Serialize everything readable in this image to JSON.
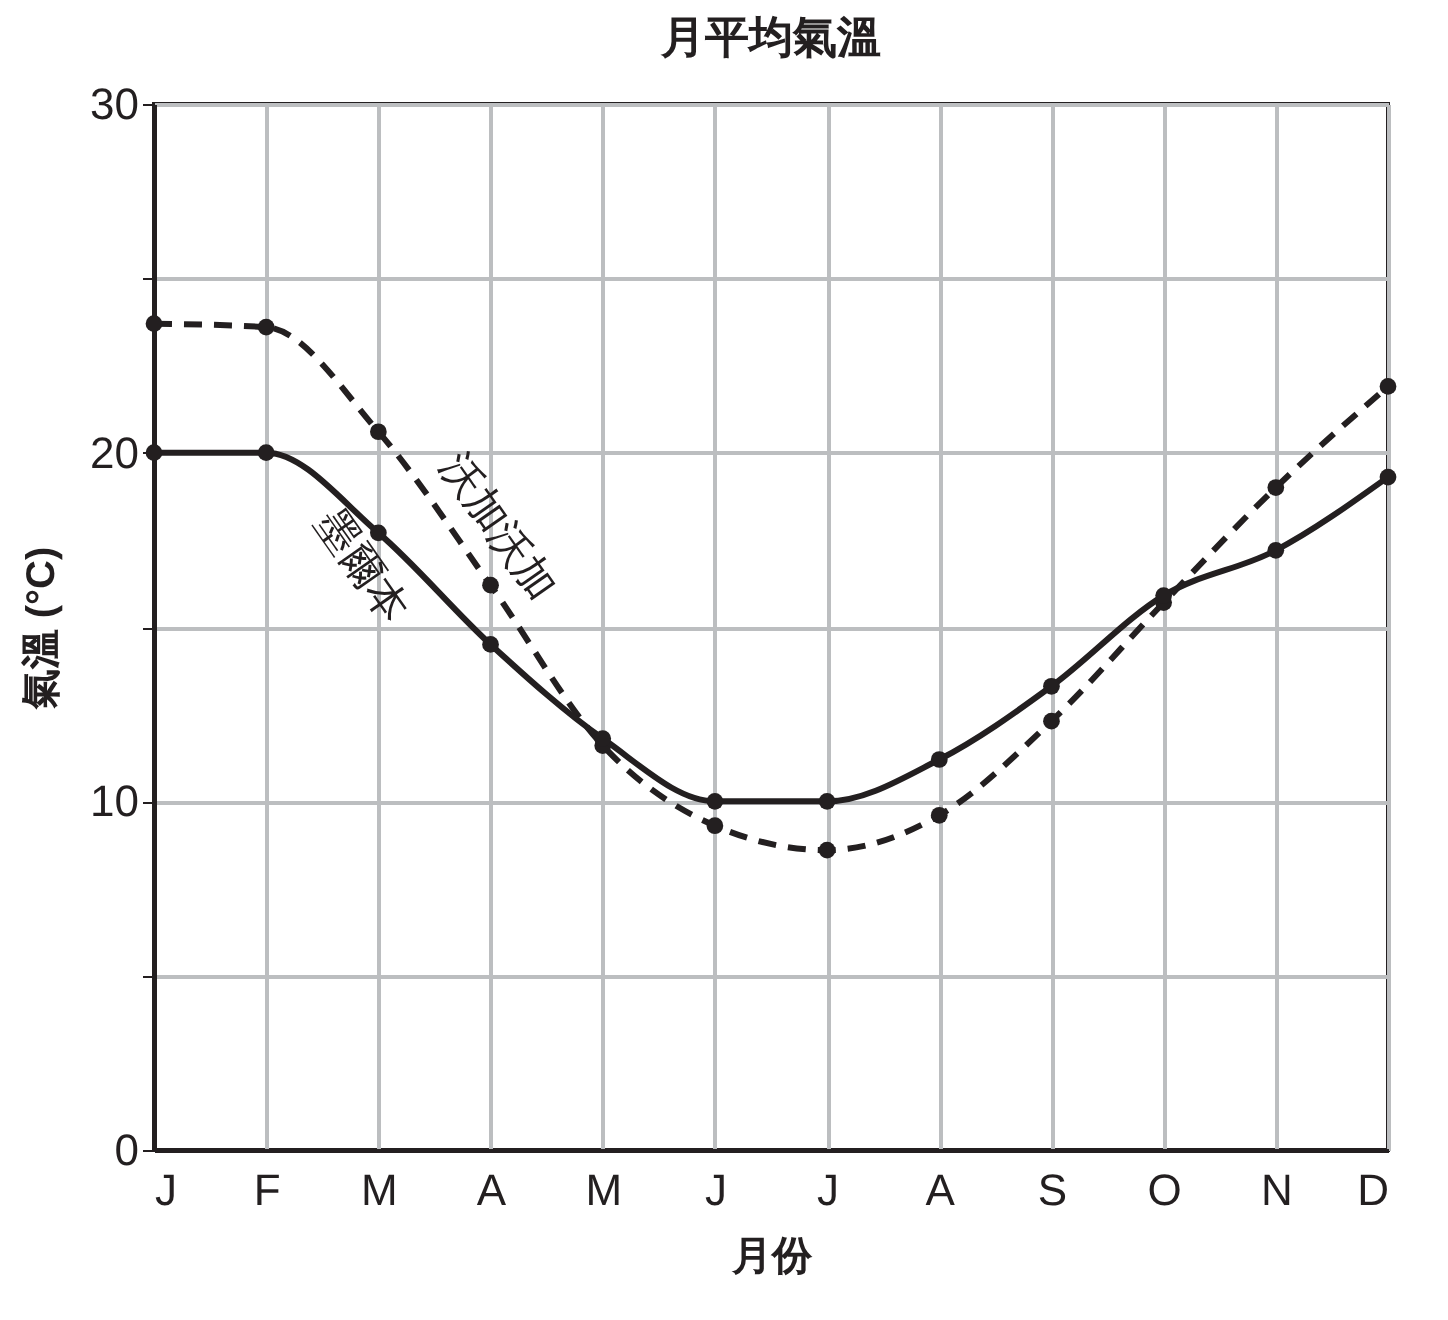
{
  "chart_data": {
    "type": "line",
    "title": "月平均氣溫",
    "xlabel": "月份",
    "ylabel": "氣溫 (°C)",
    "categories": [
      "J",
      "F",
      "M",
      "A",
      "M",
      "J",
      "J",
      "A",
      "S",
      "O",
      "N",
      "D"
    ],
    "series": [
      {
        "name": "沃加沃加",
        "color": "#231f20",
        "line_style": "dashed",
        "values": [
          23.7,
          23.6,
          20.6,
          16.2,
          11.6,
          9.3,
          8.6,
          9.6,
          12.3,
          15.7,
          19.0,
          21.9
        ]
      },
      {
        "name": "墨爾本",
        "color": "#231f20",
        "line_style": "solid",
        "values": [
          20.0,
          20.0,
          17.7,
          14.5,
          11.8,
          10.0,
          10.0,
          11.2,
          13.3,
          15.9,
          17.2,
          19.3
        ]
      }
    ],
    "ylim": [
      0,
      30
    ],
    "yticks": [
      0,
      {
        "value": 5,
        "label": null
      },
      10,
      {
        "value": 15,
        "label": null
      },
      20,
      {
        "value": 25,
        "label": null
      },
      30
    ],
    "grid": true,
    "marker": "circle"
  }
}
